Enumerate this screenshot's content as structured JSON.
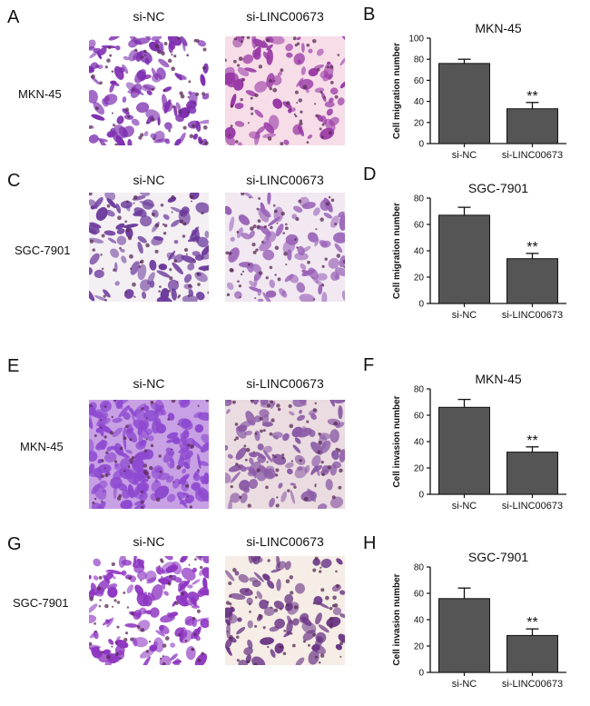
{
  "panels": {
    "A": {
      "letter": "A",
      "cols": [
        "si-NC",
        "si-LINC00673"
      ],
      "row": "MKN-45",
      "left_bg": "#ffffff",
      "left_cell": "#7e2fb0",
      "right_bg": "#f6dde8",
      "right_cell": "#9a3aa6",
      "left_density": 0.55,
      "right_density": 0.3
    },
    "C": {
      "letter": "C",
      "cols": [
        "si-NC",
        "si-LINC00673"
      ],
      "row": "SGC-7901",
      "left_bg": "#f4eff3",
      "left_cell": "#6b3a9c",
      "right_bg": "#f1e8f1",
      "right_cell": "#9a63b8",
      "left_density": 0.4,
      "right_density": 0.3
    },
    "E": {
      "letter": "E",
      "cols": [
        "si-NC",
        "si-LINC00673"
      ],
      "row": "MKN-45",
      "left_bg": "#c8a0e4",
      "left_cell": "#8d49d0",
      "right_bg": "#eadce0",
      "right_cell": "#8a5aa6",
      "left_density": 0.95,
      "right_density": 0.45
    },
    "G": {
      "letter": "G",
      "cols": [
        "si-NC",
        "si-LINC00673"
      ],
      "row": "SGC-7901",
      "left_bg": "#ffffff",
      "left_cell": "#8e36c2",
      "right_bg": "#f5ede6",
      "right_cell": "#6a3585",
      "left_density": 0.7,
      "right_density": 0.3
    }
  },
  "chart_data": [
    {
      "letter": "B",
      "type": "bar",
      "title": "MKN-45",
      "ylabel": "Cell migration number",
      "categories": [
        "si-NC",
        "si-LINC00673"
      ],
      "values": [
        76,
        33
      ],
      "errors": [
        4,
        6
      ],
      "annotations": [
        "",
        "**"
      ],
      "ylim": [
        0,
        100
      ],
      "yticks": [
        0,
        20,
        40,
        60,
        80,
        100
      ],
      "bar_color": "#555555"
    },
    {
      "letter": "D",
      "type": "bar",
      "title": "SGC-7901",
      "ylabel": "Cell migration number",
      "categories": [
        "si-NC",
        "si-LINC00673"
      ],
      "values": [
        67,
        34
      ],
      "errors": [
        6,
        4
      ],
      "annotations": [
        "",
        "**"
      ],
      "ylim": [
        0,
        80
      ],
      "yticks": [
        0,
        20,
        40,
        60,
        80
      ],
      "bar_color": "#555555"
    },
    {
      "letter": "F",
      "type": "bar",
      "title": "MKN-45",
      "ylabel": "Cell invasion number",
      "categories": [
        "si-NC",
        "si-LINC00673"
      ],
      "values": [
        66,
        32
      ],
      "errors": [
        6,
        4
      ],
      "annotations": [
        "",
        "**"
      ],
      "ylim": [
        0,
        80
      ],
      "yticks": [
        0,
        20,
        40,
        60,
        80
      ],
      "bar_color": "#555555"
    },
    {
      "letter": "H",
      "type": "bar",
      "title": "SGC-7901",
      "ylabel": "Cell invasion number",
      "categories": [
        "si-NC",
        "si-LINC00673"
      ],
      "values": [
        56,
        28
      ],
      "errors": [
        8,
        5
      ],
      "annotations": [
        "",
        "**"
      ],
      "ylim": [
        0,
        80
      ],
      "yticks": [
        0,
        20,
        40,
        60,
        80
      ],
      "bar_color": "#555555"
    }
  ]
}
